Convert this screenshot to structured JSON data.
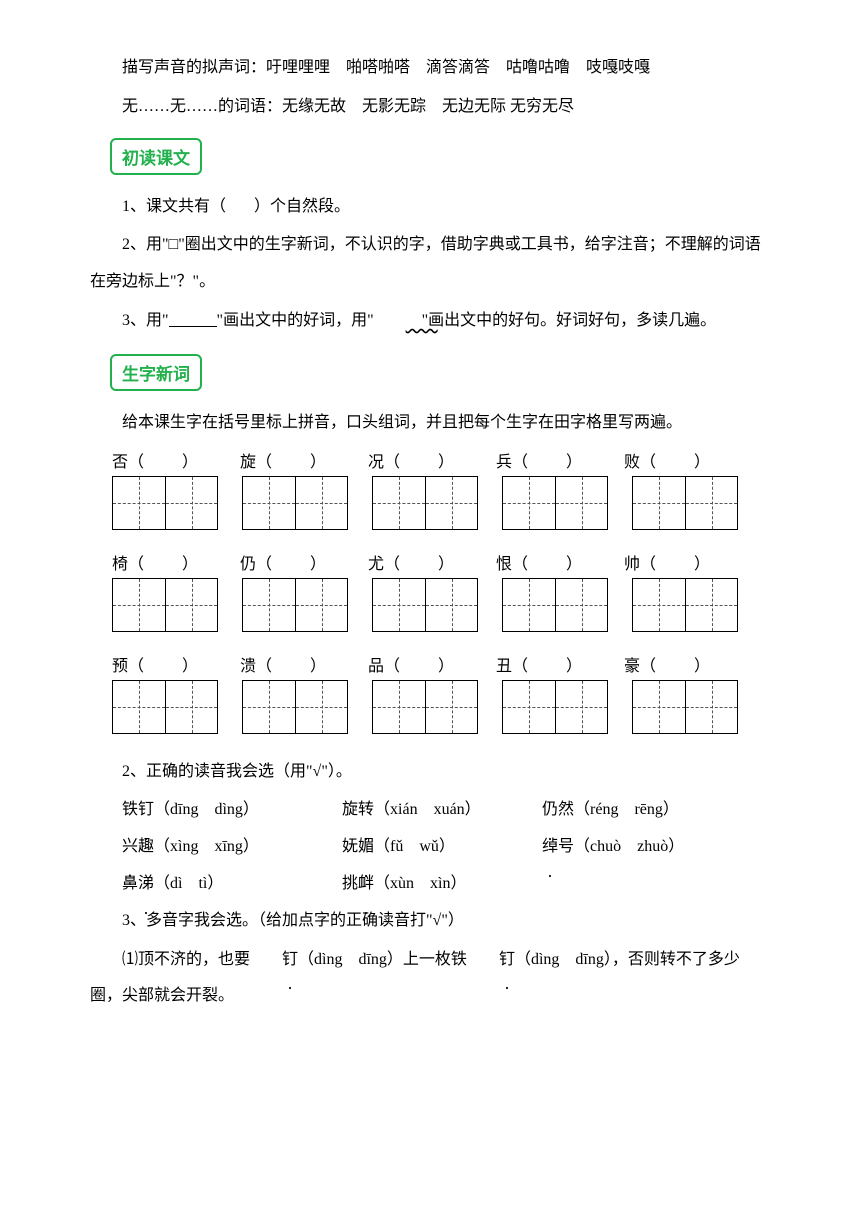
{
  "intro": {
    "line1_prefix": "描写声音的拟声词：",
    "line1_words": "吁哩哩哩　啪嗒啪嗒　滴答滴答　咕噜咕噜　吱嘎吱嘎",
    "line2_prefix": "无……无……的词语：",
    "line2_words": "无缘无故　无影无踪　无边无际 无穷无尽"
  },
  "section1_title": "初读课文",
  "reading": {
    "q1_before": "1、课文共有（",
    "q1_after": "）个自然段。",
    "q2": "2、用\"□\"圈出文中的生字新词，不认识的字，借助字典或工具书，给字注音；不理解的词语在旁边标上\"？\"。",
    "q3_a": "3、用\"",
    "q3_b": "\"画出文中的好词，用\"",
    "q3_c": "\"画出文中的好句。好词好句，多读几遍。"
  },
  "section2_title": "生字新词",
  "newwords_intro": "给本课生字在括号里标上拼音，口头组词，并且把每个生字在田字格里写两遍。",
  "char_rows": [
    [
      "否",
      "旋",
      "况",
      "兵",
      "败"
    ],
    [
      "椅",
      "仍",
      "尤",
      "恨",
      "帅"
    ],
    [
      "预",
      "溃",
      "品",
      "丑",
      "豪"
    ]
  ],
  "q2_title": "2、正确的读音我会选（用\"√\"）。",
  "pinyin_q2": [
    [
      {
        "char": "钉",
        "word_before": "铁",
        "options": "（dīng　dìng）"
      },
      {
        "char": "转",
        "word_before": "旋",
        "options": "（xián　xuán）"
      },
      {
        "char": "",
        "word_before": "仍然",
        "options": "（réng　rēng）"
      }
    ],
    [
      {
        "char": "",
        "word_before": "兴趣",
        "options": "（xìng　xīng）"
      },
      {
        "char": "媚",
        "word_before": "妩",
        "options": "（fǔ　wǔ）"
      },
      {
        "char": "",
        "word_before": "绰号",
        "options": "（chuò　zhuò）"
      }
    ],
    [
      {
        "char": "涕",
        "word_before": "鼻",
        "options": "（dì　tì）"
      },
      {
        "char": "衅",
        "word_before": "挑",
        "options": "（xùn　xìn）"
      }
    ]
  ],
  "q3_title": "3、多音字我会选。（给加点字的正确读音打\"√\"）",
  "q3_line1_a": "⑴顶不济的，也要",
  "q3_ding1": "钉",
  "q3_line1_b": "（dìng　dīng）上一枚铁",
  "q3_ding2": "钉",
  "q3_line1_c": "（dìng　dīng），否则转不了多少圈，尖部就会开裂。",
  "colors": {
    "accent_green": "#22b14c",
    "text": "#000000",
    "background": "#ffffff"
  }
}
